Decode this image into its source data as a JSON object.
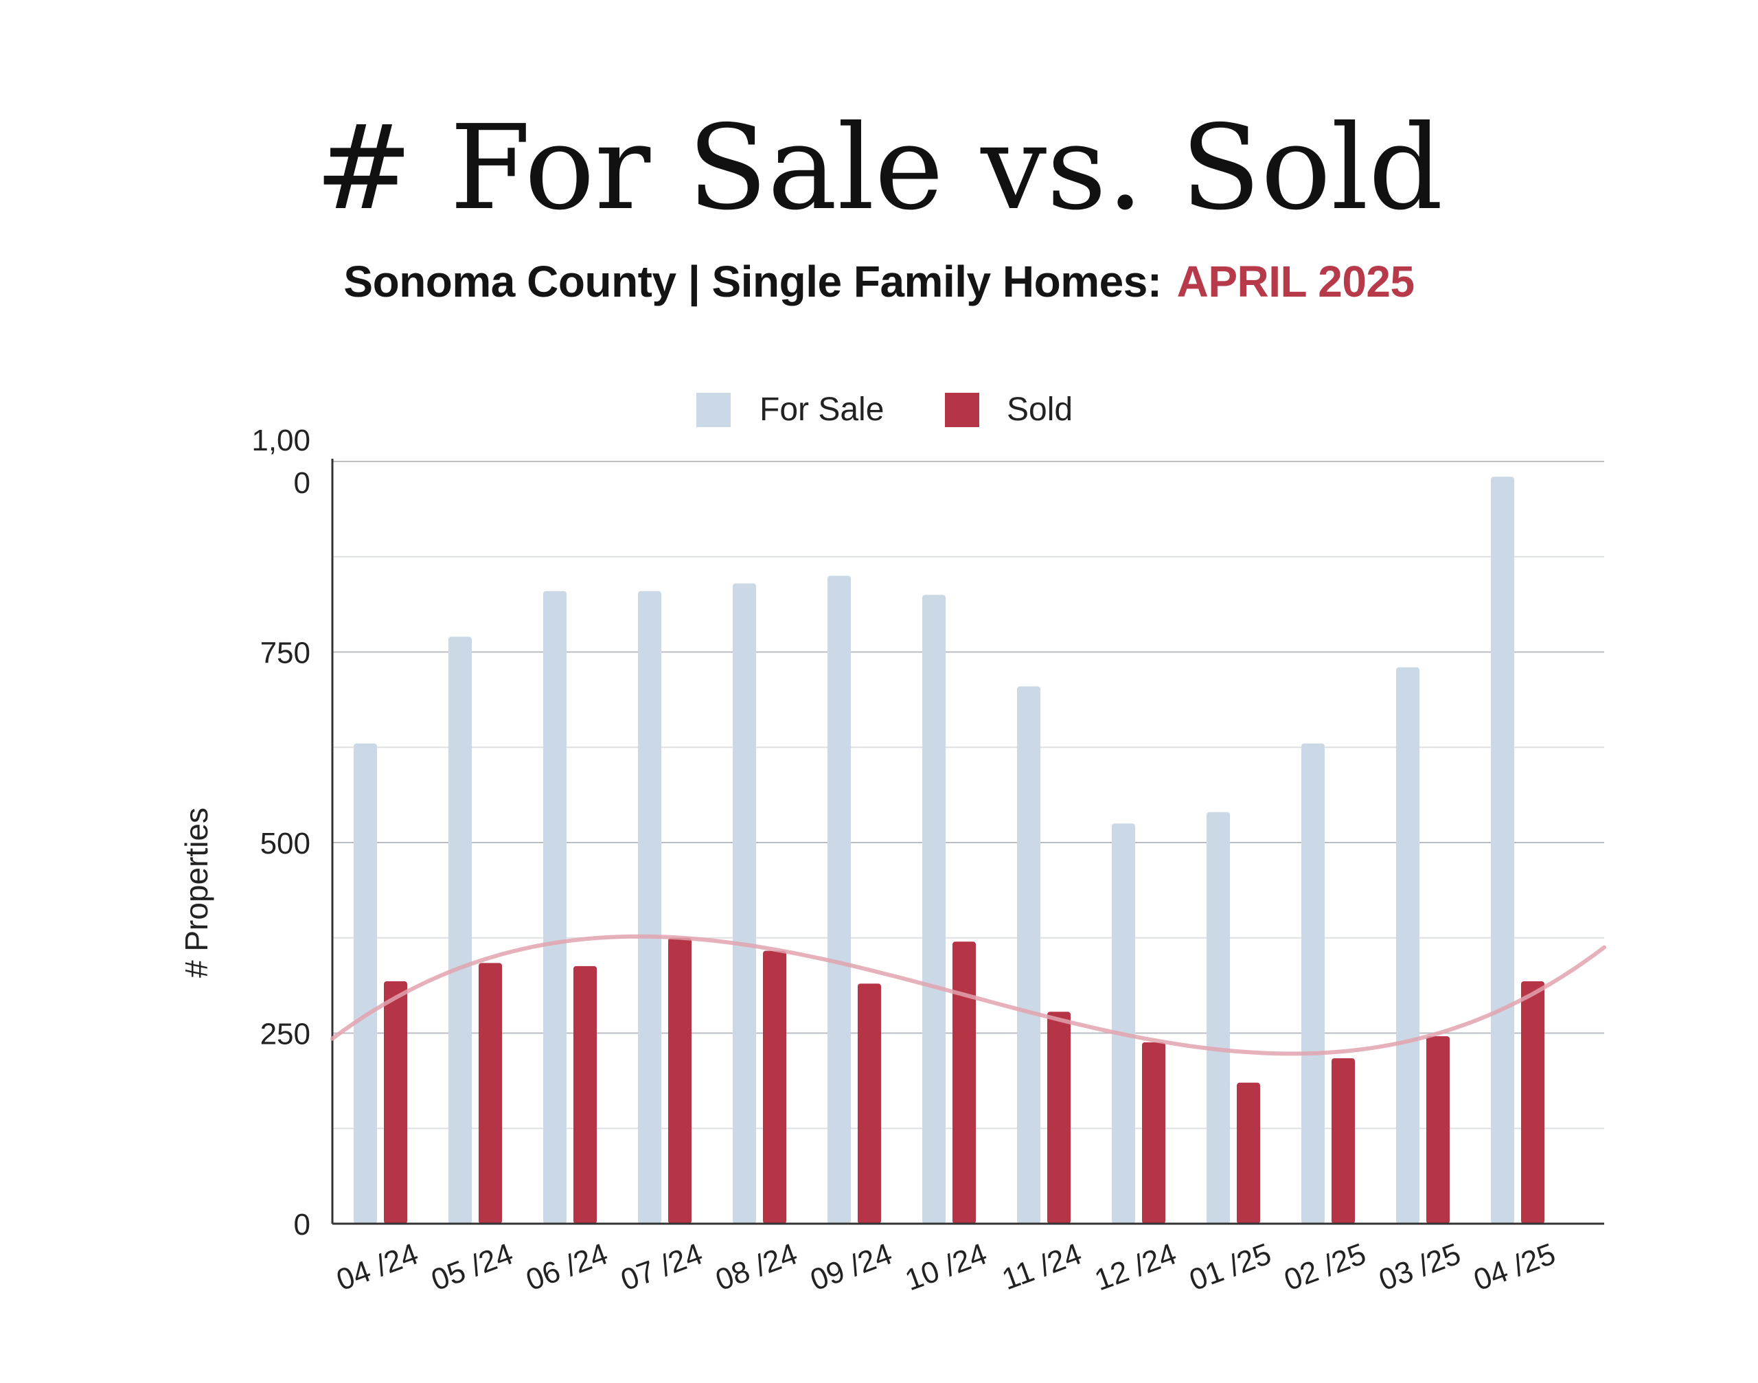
{
  "header": {
    "title": "# For Sale vs. Sold",
    "subtitle_main": "Sonoma County | Single Family Homes:",
    "subtitle_date": "APRIL 2025"
  },
  "colors": {
    "for_sale": "#cbd9e6",
    "sold": "#b53446",
    "trend": "#e2a3ae",
    "date_accent": "#b73a4b"
  },
  "chart_data": {
    "type": "bar",
    "categories": [
      "04 /24",
      "05 /24",
      "06 /24",
      "07 /24",
      "08 /24",
      "09 /24",
      "10 /24",
      "11 /24",
      "12 /24",
      "01 /25",
      "02 /25",
      "03 /25",
      "04 /25"
    ],
    "series": [
      {
        "name": "For Sale",
        "values": [
          630,
          770,
          830,
          830,
          840,
          850,
          825,
          705,
          525,
          540,
          630,
          730,
          980
        ]
      },
      {
        "name": "Sold",
        "values": [
          318,
          342,
          338,
          375,
          358,
          315,
          370,
          278,
          238,
          185,
          217,
          246,
          318
        ]
      }
    ],
    "trendline": {
      "series": "Sold",
      "style": "smooth curve"
    },
    "ylabel": "# Properties",
    "ylim": [
      0,
      1000
    ],
    "yticks": [
      0,
      250,
      500,
      750,
      1000
    ],
    "ytick_labels": [
      "0",
      "250",
      "500",
      "750",
      "1,00\n0"
    ],
    "grid": true,
    "legend": "top-center"
  }
}
